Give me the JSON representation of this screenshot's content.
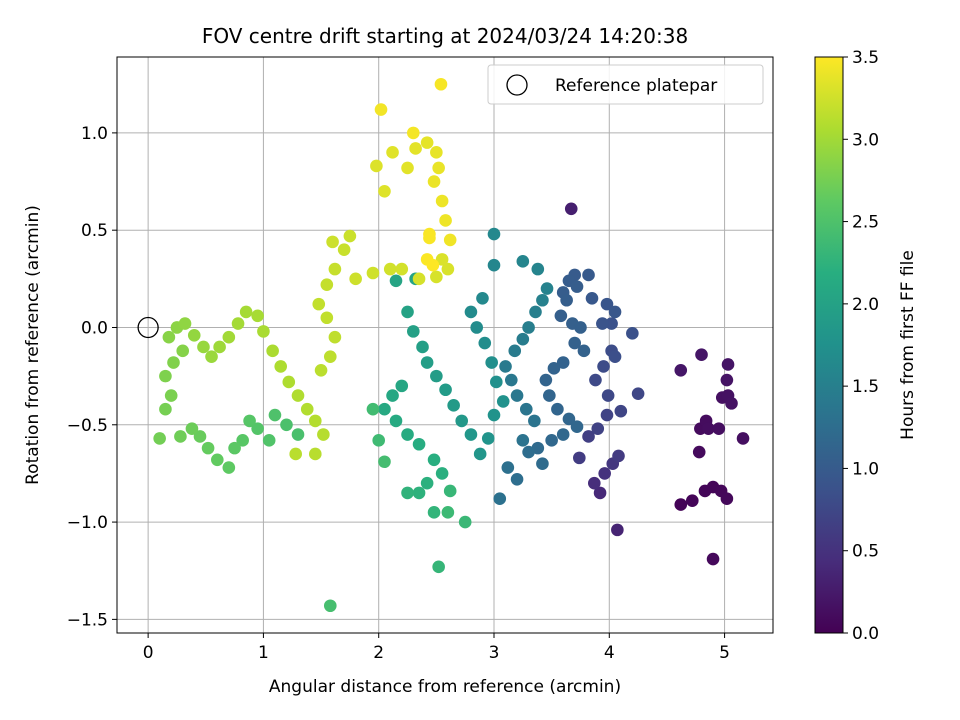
{
  "chart_data": {
    "type": "scatter",
    "title": "FOV centre drift starting at 2024/03/24 14:20:38",
    "xlabel": "Angular distance from reference (arcmin)",
    "ylabel": "Rotation from reference (arcmin)",
    "xlim": [
      -0.27,
      5.42
    ],
    "ylim": [
      -1.57,
      1.39
    ],
    "xticks": [
      0,
      1,
      2,
      3,
      4,
      5
    ],
    "xtick_labels": [
      "0",
      "1",
      "2",
      "3",
      "4",
      "5"
    ],
    "yticks": [
      -1.5,
      -1.0,
      -0.5,
      0.0,
      0.5,
      1.0
    ],
    "ytick_labels": [
      "−1.5",
      "−1.0",
      "−0.5",
      "0.0",
      "0.5",
      "1.0"
    ],
    "grid": true,
    "legend": {
      "placement": "top-right",
      "entries": [
        "Reference platepar"
      ]
    },
    "reference_point": {
      "x": 0.0,
      "y": 0.0
    },
    "colorbar": {
      "label": "Hours from first FF file",
      "colormap": "viridis",
      "range": [
        0.0,
        3.5
      ],
      "ticks": [
        0.0,
        0.5,
        1.0,
        1.5,
        2.0,
        2.5,
        3.0,
        3.5
      ],
      "tick_labels": [
        "0.0",
        "0.5",
        "1.0",
        "1.5",
        "2.0",
        "2.5",
        "3.0",
        "3.5"
      ]
    },
    "points_fields": [
      "x",
      "y",
      "hours"
    ],
    "points": [
      [
        4.62,
        -0.91,
        0.03
      ],
      [
        4.72,
        -0.89,
        0.04
      ],
      [
        4.83,
        -0.84,
        0.05
      ],
      [
        4.9,
        -0.82,
        0.05
      ],
      [
        4.97,
        -0.84,
        0.06
      ],
      [
        5.02,
        -0.88,
        0.07
      ],
      [
        4.9,
        -1.19,
        0.08
      ],
      [
        4.78,
        -0.64,
        0.09
      ],
      [
        4.79,
        -0.52,
        0.1
      ],
      [
        4.84,
        -0.48,
        0.11
      ],
      [
        4.86,
        -0.52,
        0.12
      ],
      [
        4.95,
        -0.52,
        0.13
      ],
      [
        5.16,
        -0.57,
        0.14
      ],
      [
        4.98,
        -0.36,
        0.15
      ],
      [
        5.03,
        -0.35,
        0.16
      ],
      [
        5.06,
        -0.39,
        0.17
      ],
      [
        5.02,
        -0.27,
        0.18
      ],
      [
        5.03,
        -0.19,
        0.19
      ],
      [
        4.8,
        -0.14,
        0.2
      ],
      [
        4.62,
        -0.22,
        0.21
      ],
      [
        3.67,
        0.61,
        0.3
      ],
      [
        4.07,
        -1.04,
        0.35
      ],
      [
        3.92,
        -0.85,
        0.4
      ],
      [
        3.87,
        -0.8,
        0.45
      ],
      [
        3.96,
        -0.75,
        0.5
      ],
      [
        4.03,
        -0.7,
        0.55
      ],
      [
        4.08,
        -0.66,
        0.6
      ],
      [
        3.74,
        -0.67,
        0.62
      ],
      [
        3.82,
        -0.56,
        0.65
      ],
      [
        3.9,
        -0.52,
        0.68
      ],
      [
        3.98,
        -0.45,
        0.7
      ],
      [
        4.1,
        -0.43,
        0.72
      ],
      [
        4.25,
        -0.34,
        0.74
      ],
      [
        3.99,
        -0.35,
        0.76
      ],
      [
        3.88,
        -0.27,
        0.78
      ],
      [
        3.95,
        -0.2,
        0.8
      ],
      [
        4.02,
        -0.12,
        0.82
      ],
      [
        4.05,
        -0.15,
        0.84
      ],
      [
        4.2,
        -0.03,
        0.86
      ],
      [
        4.02,
        0.02,
        0.88
      ],
      [
        3.94,
        0.02,
        0.9
      ],
      [
        3.98,
        0.12,
        0.92
      ],
      [
        4.05,
        0.08,
        0.94
      ],
      [
        3.85,
        0.15,
        0.96
      ],
      [
        3.82,
        0.27,
        0.98
      ],
      [
        3.7,
        0.27,
        1.0
      ],
      [
        3.65,
        0.24,
        1.01
      ],
      [
        3.72,
        0.21,
        1.02
      ],
      [
        3.6,
        0.18,
        1.03
      ],
      [
        3.63,
        0.14,
        1.04
      ],
      [
        3.58,
        0.06,
        1.05
      ],
      [
        3.68,
        0.02,
        1.06
      ],
      [
        3.75,
        0.0,
        1.07
      ],
      [
        3.7,
        -0.08,
        1.08
      ],
      [
        3.78,
        -0.12,
        1.09
      ],
      [
        3.6,
        -0.18,
        1.1
      ],
      [
        3.52,
        -0.21,
        1.11
      ],
      [
        3.45,
        -0.27,
        1.12
      ],
      [
        3.48,
        -0.35,
        1.13
      ],
      [
        3.55,
        -0.42,
        1.14
      ],
      [
        3.65,
        -0.47,
        1.15
      ],
      [
        3.72,
        -0.51,
        1.16
      ],
      [
        3.6,
        -0.55,
        1.17
      ],
      [
        3.5,
        -0.58,
        1.18
      ],
      [
        3.38,
        -0.62,
        1.2
      ],
      [
        3.42,
        -0.7,
        1.22
      ],
      [
        3.3,
        -0.64,
        1.24
      ],
      [
        3.2,
        -0.78,
        1.26
      ],
      [
        3.12,
        -0.72,
        1.28
      ],
      [
        3.05,
        -0.88,
        1.3
      ],
      [
        3.25,
        -0.58,
        1.32
      ],
      [
        3.35,
        -0.48,
        1.34
      ],
      [
        3.28,
        -0.42,
        1.36
      ],
      [
        3.2,
        -0.35,
        1.38
      ],
      [
        3.15,
        -0.27,
        1.4
      ],
      [
        3.1,
        -0.2,
        1.42
      ],
      [
        3.18,
        -0.12,
        1.44
      ],
      [
        3.25,
        -0.06,
        1.46
      ],
      [
        3.3,
        0.0,
        1.48
      ],
      [
        3.36,
        0.08,
        1.5
      ],
      [
        3.42,
        0.14,
        1.52
      ],
      [
        3.46,
        0.2,
        1.54
      ],
      [
        3.38,
        0.3,
        1.56
      ],
      [
        3.25,
        0.34,
        1.58
      ],
      [
        3.0,
        0.32,
        1.6
      ],
      [
        3.0,
        0.48,
        1.62
      ],
      [
        2.9,
        0.15,
        1.64
      ],
      [
        2.8,
        0.08,
        1.66
      ],
      [
        2.85,
        0.0,
        1.68
      ],
      [
        2.92,
        -0.08,
        1.7
      ],
      [
        2.98,
        -0.18,
        1.72
      ],
      [
        3.02,
        -0.28,
        1.74
      ],
      [
        3.08,
        -0.38,
        1.76
      ],
      [
        3.0,
        -0.45,
        1.78
      ],
      [
        2.95,
        -0.57,
        1.8
      ],
      [
        2.88,
        -0.65,
        1.82
      ],
      [
        2.8,
        -0.55,
        1.84
      ],
      [
        2.72,
        -0.48,
        1.86
      ],
      [
        2.65,
        -0.4,
        1.88
      ],
      [
        2.58,
        -0.32,
        1.9
      ],
      [
        2.5,
        -0.25,
        1.92
      ],
      [
        2.42,
        -0.18,
        1.94
      ],
      [
        2.38,
        -0.1,
        1.96
      ],
      [
        2.3,
        -0.02,
        1.98
      ],
      [
        2.25,
        0.08,
        2.0
      ],
      [
        2.32,
        0.25,
        2.02
      ],
      [
        2.15,
        0.24,
        2.04
      ],
      [
        2.2,
        -0.3,
        2.06
      ],
      [
        2.12,
        -0.35,
        2.08
      ],
      [
        2.05,
        -0.42,
        2.1
      ],
      [
        2.15,
        -0.48,
        2.12
      ],
      [
        2.25,
        -0.55,
        2.14
      ],
      [
        2.35,
        -0.6,
        2.16
      ],
      [
        2.48,
        -0.68,
        2.18
      ],
      [
        2.55,
        -0.75,
        2.2
      ],
      [
        2.42,
        -0.8,
        2.22
      ],
      [
        2.35,
        -0.85,
        2.24
      ],
      [
        2.25,
        -0.85,
        2.26
      ],
      [
        2.48,
        -0.95,
        2.28
      ],
      [
        2.52,
        -1.23,
        2.3
      ],
      [
        2.62,
        -0.84,
        2.32
      ],
      [
        2.75,
        -1.0,
        2.34
      ],
      [
        2.6,
        -0.95,
        2.36
      ],
      [
        2.0,
        -0.58,
        2.38
      ],
      [
        1.95,
        -0.42,
        2.4
      ],
      [
        2.05,
        -0.69,
        2.42
      ],
      [
        1.58,
        -1.43,
        2.44
      ],
      [
        1.3,
        -0.55,
        2.46
      ],
      [
        1.2,
        -0.5,
        2.48
      ],
      [
        1.1,
        -0.45,
        2.5
      ],
      [
        1.05,
        -0.58,
        2.52
      ],
      [
        0.95,
        -0.52,
        2.54
      ],
      [
        0.88,
        -0.48,
        2.56
      ],
      [
        0.82,
        -0.58,
        2.58
      ],
      [
        0.75,
        -0.62,
        2.6
      ],
      [
        0.7,
        -0.72,
        2.62
      ],
      [
        0.6,
        -0.68,
        2.64
      ],
      [
        0.52,
        -0.62,
        2.66
      ],
      [
        0.45,
        -0.56,
        2.68
      ],
      [
        0.38,
        -0.52,
        2.7
      ],
      [
        0.28,
        -0.56,
        2.72
      ],
      [
        0.1,
        -0.57,
        2.74
      ],
      [
        0.15,
        -0.42,
        2.76
      ],
      [
        0.2,
        -0.35,
        2.78
      ],
      [
        0.15,
        -0.25,
        2.8
      ],
      [
        0.22,
        -0.18,
        2.82
      ],
      [
        0.3,
        -0.12,
        2.84
      ],
      [
        0.18,
        -0.05,
        2.86
      ],
      [
        0.25,
        0.0,
        2.88
      ],
      [
        0.32,
        0.02,
        2.9
      ],
      [
        0.4,
        -0.04,
        2.92
      ],
      [
        0.48,
        -0.1,
        2.94
      ],
      [
        0.55,
        -0.15,
        2.96
      ],
      [
        0.62,
        -0.1,
        2.98
      ],
      [
        0.7,
        -0.05,
        3.0
      ],
      [
        0.78,
        0.02,
        3.01
      ],
      [
        0.85,
        0.08,
        3.02
      ],
      [
        0.95,
        0.06,
        3.03
      ],
      [
        1.0,
        -0.02,
        3.04
      ],
      [
        1.08,
        -0.12,
        3.05
      ],
      [
        1.15,
        -0.2,
        3.06
      ],
      [
        1.22,
        -0.28,
        3.07
      ],
      [
        1.3,
        -0.35,
        3.08
      ],
      [
        1.38,
        -0.42,
        3.09
      ],
      [
        1.45,
        -0.48,
        3.1
      ],
      [
        1.52,
        -0.55,
        3.11
      ],
      [
        1.45,
        -0.65,
        3.12
      ],
      [
        1.28,
        -0.65,
        3.13
      ],
      [
        1.5,
        -0.22,
        3.14
      ],
      [
        1.58,
        -0.15,
        3.15
      ],
      [
        1.62,
        -0.05,
        3.16
      ],
      [
        1.55,
        0.05,
        3.17
      ],
      [
        1.48,
        0.12,
        3.18
      ],
      [
        1.55,
        0.22,
        3.19
      ],
      [
        1.62,
        0.3,
        3.2
      ],
      [
        1.7,
        0.4,
        3.21
      ],
      [
        1.75,
        0.47,
        3.22
      ],
      [
        1.6,
        0.44,
        3.23
      ],
      [
        1.8,
        0.25,
        3.24
      ],
      [
        1.95,
        0.28,
        3.25
      ],
      [
        2.1,
        0.3,
        3.26
      ],
      [
        2.2,
        0.3,
        3.27
      ],
      [
        2.35,
        0.25,
        3.28
      ],
      [
        2.5,
        0.26,
        3.29
      ],
      [
        2.6,
        0.3,
        3.3
      ],
      [
        2.55,
        0.35,
        3.31
      ],
      [
        1.98,
        0.83,
        3.32
      ],
      [
        2.05,
        0.7,
        3.33
      ],
      [
        2.12,
        0.9,
        3.34
      ],
      [
        2.25,
        0.82,
        3.35
      ],
      [
        2.32,
        0.92,
        3.36
      ],
      [
        2.42,
        0.95,
        3.37
      ],
      [
        2.5,
        0.9,
        3.38
      ],
      [
        2.52,
        0.82,
        3.39
      ],
      [
        2.48,
        0.75,
        3.4
      ],
      [
        2.55,
        0.65,
        3.41
      ],
      [
        2.58,
        0.55,
        3.42
      ],
      [
        2.62,
        0.45,
        3.43
      ],
      [
        2.02,
        1.12,
        3.44
      ],
      [
        2.3,
        1.0,
        3.45
      ],
      [
        2.54,
        1.25,
        3.46
      ],
      [
        2.44,
        0.46,
        3.47
      ],
      [
        2.44,
        0.48,
        3.48
      ],
      [
        2.42,
        0.35,
        3.49
      ],
      [
        2.47,
        0.32,
        3.5
      ]
    ]
  }
}
